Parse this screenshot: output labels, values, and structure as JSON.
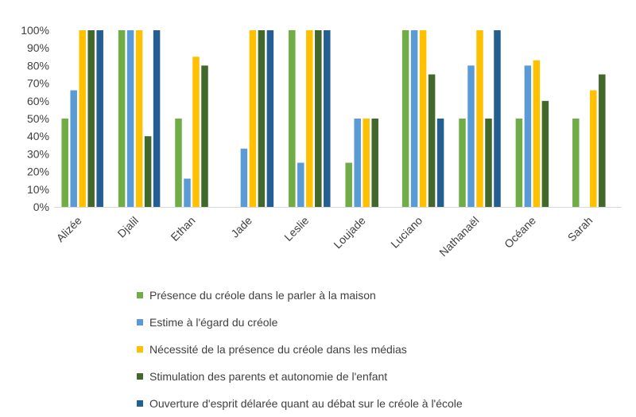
{
  "chart_data": {
    "type": "bar",
    "title": "",
    "xlabel": "",
    "ylabel": "",
    "ylim": [
      0,
      1
    ],
    "y_tick_labels": [
      "0%",
      "10%",
      "20%",
      "30%",
      "40%",
      "50%",
      "60%",
      "70%",
      "80%",
      "90%",
      "100%"
    ],
    "grid": false,
    "legend_position": "bottom",
    "categories": [
      "Alizée",
      "Djalil",
      "Ethan",
      "Jade",
      "Leslie",
      "Loujade",
      "Luciano",
      "Nathanaël",
      "Océane",
      "Sarah"
    ],
    "series": [
      {
        "name": "Présence du créole dans le parler à la maison",
        "color": "#70AD47",
        "values": [
          0.5,
          1.0,
          0.5,
          0,
          1.0,
          0.25,
          1.0,
          0.5,
          0.5,
          0.5
        ]
      },
      {
        "name": "Estime à l'égard du créole",
        "color": "#5B9BD5",
        "values": [
          0.66,
          1.0,
          0.16,
          0.33,
          0.25,
          0.5,
          1.0,
          0.8,
          0.8,
          0
        ]
      },
      {
        "name": "Nécessité de la présence du créole dans les médias",
        "color": "#FFC000",
        "values": [
          1.0,
          1.0,
          0.85,
          1.0,
          1.0,
          0.5,
          1.0,
          1.0,
          0.83,
          0.66
        ]
      },
      {
        "name": "Stimulation des parents et autonomie de l'enfant",
        "color": "#43682B",
        "values": [
          1.0,
          0.4,
          0.8,
          1.0,
          1.0,
          0.5,
          0.75,
          0.5,
          0.6,
          0.75
        ]
      },
      {
        "name": "Ouverture d'esprit délarée quant au débat sur le créole à l'école",
        "color": "#255E91",
        "values": [
          1.0,
          1.0,
          0,
          1.0,
          1.0,
          0,
          0.5,
          1.0,
          0,
          0
        ]
      }
    ]
  }
}
